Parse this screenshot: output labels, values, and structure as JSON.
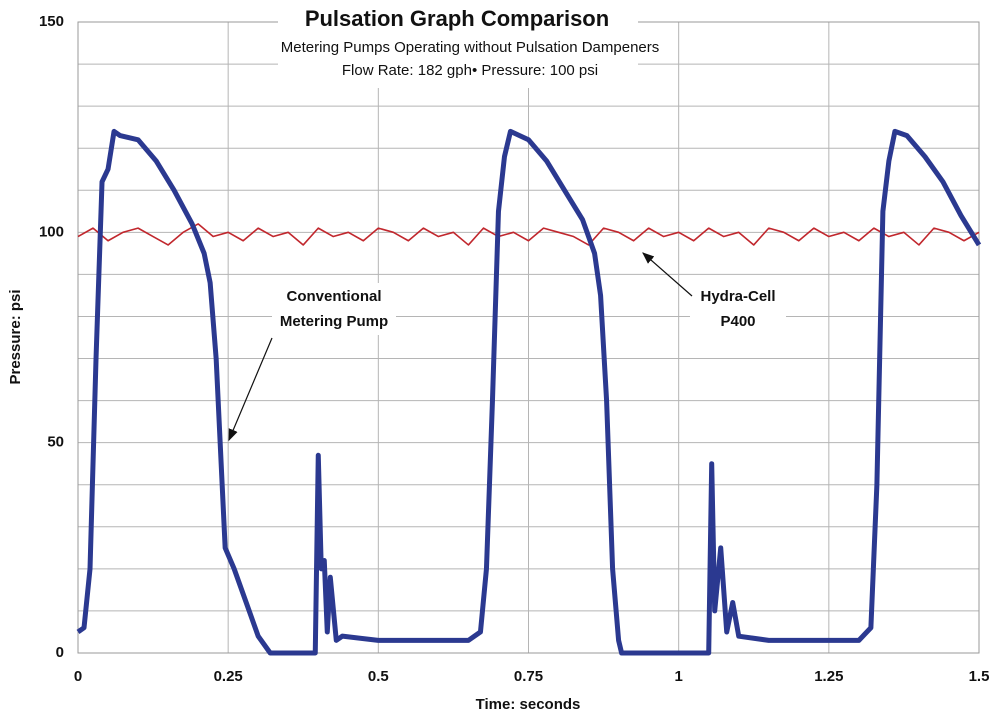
{
  "chart_data": {
    "type": "line",
    "title": "Pulsation Graph Comparison",
    "subtitle": [
      "Metering Pumps Operating without Pulsation Dampeners",
      "Flow Rate: 182 gph• Pressure: 100 psi"
    ],
    "x_label": "Time: seconds",
    "y_label": "Pressure: psi",
    "xlim": [
      0,
      1.5
    ],
    "xticks": [
      0,
      0.25,
      0.5,
      0.75,
      1,
      1.25,
      1.5
    ],
    "ylim": [
      0,
      150
    ],
    "yticks": [
      0,
      50,
      100,
      150
    ],
    "y_minor_ticks": [
      10,
      20,
      30,
      40,
      60,
      70,
      80,
      90,
      110,
      120,
      130,
      140
    ],
    "grid": true,
    "annotations": [
      {
        "text": [
          "Conventional",
          "Metering Pump"
        ]
      },
      {
        "text": [
          "Hydra-Cell",
          "P400"
        ]
      }
    ],
    "series": [
      {
        "name": "Conventional Metering Pump",
        "color": "#2b3990",
        "x": [
          0,
          0.01,
          0.02,
          0.03,
          0.04,
          0.05,
          0.06,
          0.07,
          0.1,
          0.13,
          0.16,
          0.19,
          0.21,
          0.22,
          0.23,
          0.24,
          0.245,
          0.26,
          0.28,
          0.3,
          0.32,
          0.36,
          0.38,
          0.395,
          0.4,
          0.405,
          0.41,
          0.415,
          0.42,
          0.43,
          0.44,
          0.5,
          0.55,
          0.6,
          0.65,
          0.67,
          0.68,
          0.69,
          0.7,
          0.71,
          0.72,
          0.75,
          0.78,
          0.81,
          0.84,
          0.86,
          0.87,
          0.88,
          0.89,
          0.9,
          0.905,
          1.0,
          1.05,
          1.055,
          1.06,
          1.07,
          1.08,
          1.09,
          1.1,
          1.15,
          1.2,
          1.25,
          1.3,
          1.32,
          1.33,
          1.34,
          1.35,
          1.36,
          1.38,
          1.41,
          1.44,
          1.47,
          1.5
        ],
        "values": [
          5,
          6,
          20,
          70,
          112,
          115,
          124,
          123,
          122,
          117,
          110,
          102,
          95,
          88,
          70,
          40,
          25,
          20,
          12,
          4,
          0,
          0,
          0,
          0,
          47,
          20,
          22,
          5,
          18,
          3,
          4,
          3,
          3,
          3,
          3,
          5,
          20,
          60,
          105,
          118,
          124,
          122,
          117,
          110,
          103,
          95,
          85,
          60,
          20,
          3,
          0,
          0,
          0,
          45,
          10,
          25,
          5,
          12,
          4,
          3,
          3,
          3,
          3,
          6,
          40,
          105,
          117,
          124,
          123,
          118,
          112,
          104,
          97
        ]
      },
      {
        "name": "Hydra-Cell P400",
        "color": "#c1272d",
        "x": [
          0,
          0.025,
          0.05,
          0.075,
          0.1,
          0.125,
          0.15,
          0.175,
          0.2,
          0.225,
          0.25,
          0.275,
          0.3,
          0.325,
          0.35,
          0.375,
          0.4,
          0.425,
          0.45,
          0.475,
          0.5,
          0.525,
          0.55,
          0.575,
          0.6,
          0.625,
          0.65,
          0.675,
          0.7,
          0.725,
          0.75,
          0.775,
          0.8,
          0.825,
          0.85,
          0.875,
          0.9,
          0.925,
          0.95,
          0.975,
          1,
          1.025,
          1.05,
          1.075,
          1.1,
          1.125,
          1.15,
          1.175,
          1.2,
          1.225,
          1.25,
          1.275,
          1.3,
          1.325,
          1.35,
          1.375,
          1.4,
          1.425,
          1.45,
          1.475,
          1.5
        ],
        "values": [
          99,
          101,
          98,
          100,
          101,
          99,
          97,
          100,
          102,
          99,
          100,
          98,
          101,
          99,
          100,
          97,
          101,
          99,
          100,
          98,
          101,
          100,
          98,
          101,
          99,
          100,
          97,
          101,
          99,
          100,
          98,
          101,
          100,
          99,
          97,
          101,
          100,
          98,
          101,
          99,
          100,
          98,
          101,
          99,
          100,
          97,
          101,
          100,
          98,
          101,
          99,
          100,
          98,
          101,
          99,
          100,
          97,
          101,
          100,
          98,
          100
        ]
      }
    ]
  }
}
